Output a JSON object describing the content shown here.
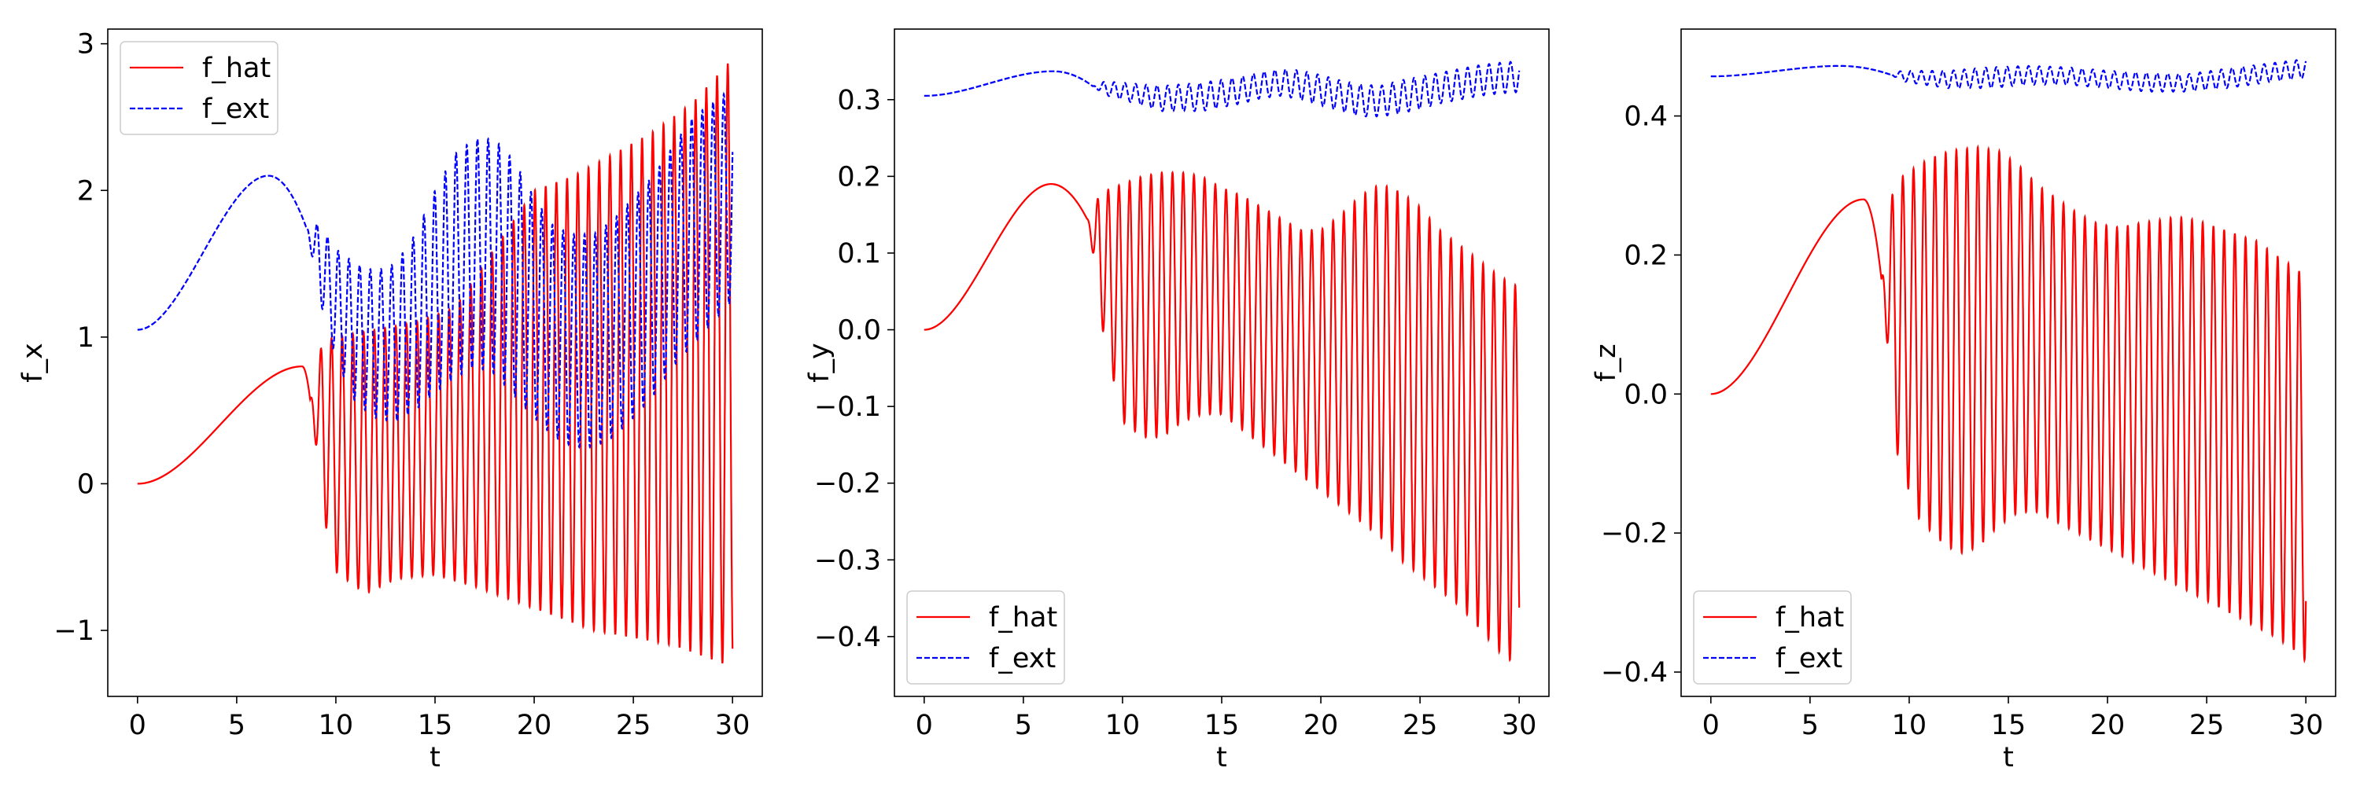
{
  "chart_data": [
    {
      "type": "line",
      "xlabel": "t",
      "ylabel": "f_x",
      "xlim": [
        -1.5,
        31.5
      ],
      "ylim": [
        -1.45,
        3.1
      ],
      "xticks": [
        0,
        5,
        10,
        15,
        20,
        25,
        30
      ],
      "xtick_labels": [
        "0",
        "5",
        "10",
        "15",
        "20",
        "25",
        "30"
      ],
      "yticks": [
        -1,
        0,
        1,
        2,
        3
      ],
      "ytick_labels": [
        "−1",
        "0",
        "1",
        "2",
        "3"
      ],
      "legend": {
        "position": "upper left",
        "entries": [
          "f_hat",
          "f_ext"
        ]
      },
      "series": [
        {
          "name": "f_hat",
          "color": "#ff0000",
          "style": "solid",
          "onset_t": 8.7,
          "smooth": {
            "v0": 0.0,
            "peak_v": 0.8,
            "peak_t": 8.3
          },
          "osc_period": 0.54,
          "upper_env": {
            "t": [
              8.7,
              10,
              12,
              14,
              16,
              18,
              20,
              22,
              24,
              26,
              28,
              30
            ],
            "v": [
              0.95,
              1.0,
              1.05,
              1.1,
              1.2,
              1.6,
              2.0,
              2.1,
              2.25,
              2.4,
              2.6,
              2.9
            ]
          },
          "lower_env": {
            "t": [
              8.7,
              10,
              11.5,
              13,
              15,
              17,
              19,
              21,
              23,
              25,
              27,
              30
            ],
            "v": [
              0.2,
              -0.6,
              -0.75,
              -0.65,
              -0.62,
              -0.7,
              -0.8,
              -0.9,
              -1.0,
              -1.05,
              -1.1,
              -1.25
            ]
          }
        },
        {
          "name": "f_ext",
          "color": "#0000ff",
          "style": "dashed",
          "onset_t": 8.5,
          "smooth": {
            "v0": 1.05,
            "peak_v": 2.1,
            "peak_t": 6.6
          },
          "osc_period": 0.54,
          "upper_env": {
            "t": [
              8.5,
              10,
              11,
              12,
              13,
              14,
              15,
              16,
              17,
              18,
              19,
              20,
              21,
              22,
              23,
              24,
              25,
              26,
              27,
              28,
              29,
              30
            ],
            "v": [
              1.9,
              1.6,
              1.5,
              1.45,
              1.5,
              1.7,
              2.0,
              2.25,
              2.35,
              2.35,
              2.2,
              1.95,
              1.75,
              1.7,
              1.7,
              1.8,
              1.95,
              2.1,
              2.3,
              2.5,
              2.6,
              2.7
            ]
          },
          "lower_env": {
            "t": [
              8.5,
              10,
              11,
              12,
              13,
              14,
              15,
              16,
              17,
              18,
              19,
              20,
              21,
              22,
              23,
              24,
              25,
              26,
              27,
              28,
              29,
              30
            ],
            "v": [
              1.6,
              0.85,
              0.55,
              0.45,
              0.42,
              0.5,
              0.62,
              0.72,
              0.8,
              0.75,
              0.6,
              0.45,
              0.32,
              0.25,
              0.25,
              0.32,
              0.45,
              0.6,
              0.8,
              0.95,
              1.1,
              1.25
            ]
          }
        }
      ]
    },
    {
      "type": "line",
      "xlabel": "t",
      "ylabel": "f_y",
      "xlim": [
        -1.5,
        31.5
      ],
      "ylim": [
        -0.478,
        0.392
      ],
      "xticks": [
        0,
        5,
        10,
        15,
        20,
        25,
        30
      ],
      "xtick_labels": [
        "0",
        "5",
        "10",
        "15",
        "20",
        "25",
        "30"
      ],
      "yticks": [
        -0.4,
        -0.3,
        -0.2,
        -0.1,
        0.0,
        0.1,
        0.2,
        0.3
      ],
      "ytick_labels": [
        "−0.4",
        "−0.3",
        "−0.2",
        "−0.1",
        "0.0",
        "0.1",
        "0.2",
        "0.3"
      ],
      "legend": {
        "position": "lower left",
        "entries": [
          "f_hat",
          "f_ext"
        ]
      },
      "series": [
        {
          "name": "f_hat",
          "color": "#ff0000",
          "style": "solid",
          "onset_t": 8.2,
          "smooth": {
            "v0": 0.0,
            "peak_v": 0.19,
            "peak_t": 6.4
          },
          "osc_period": 0.54,
          "upper_env": {
            "t": [
              8.2,
              9,
              10,
              11,
              12,
              13,
              14,
              15,
              16,
              17,
              18,
              19,
              20,
              21,
              22,
              23,
              24,
              25,
              26,
              27,
              28,
              29,
              30
            ],
            "v": [
              0.17,
              0.18,
              0.19,
              0.2,
              0.205,
              0.205,
              0.2,
              0.185,
              0.175,
              0.16,
              0.145,
              0.13,
              0.13,
              0.15,
              0.175,
              0.19,
              0.18,
              0.16,
              0.13,
              0.11,
              0.09,
              0.07,
              0.055
            ]
          },
          "lower_env": {
            "t": [
              8.2,
              9,
              10,
              11,
              12,
              13,
              14,
              15,
              16,
              17,
              18,
              19,
              20,
              21,
              22,
              23,
              24,
              25,
              26,
              27,
              28,
              29,
              30
            ],
            "v": [
              0.12,
              0.0,
              -0.12,
              -0.14,
              -0.14,
              -0.12,
              -0.11,
              -0.11,
              -0.13,
              -0.15,
              -0.17,
              -0.19,
              -0.21,
              -0.23,
              -0.25,
              -0.27,
              -0.3,
              -0.32,
              -0.34,
              -0.36,
              -0.39,
              -0.42,
              -0.44
            ]
          }
        },
        {
          "name": "f_ext",
          "color": "#0000ff",
          "style": "dashed",
          "onset_t": 8.5,
          "smooth": {
            "v0": 0.305,
            "peak_v": 0.337,
            "peak_t": 6.5
          },
          "osc_period": 0.54,
          "upper_env": {
            "t": [
              8.5,
              10,
              12,
              14,
              16,
              17,
              18,
              19,
              20,
              21,
              22,
              23,
              24,
              25,
              26,
              27,
              28,
              29,
              30
            ],
            "v": [
              0.325,
              0.322,
              0.318,
              0.322,
              0.33,
              0.336,
              0.34,
              0.338,
              0.332,
              0.325,
              0.32,
              0.318,
              0.325,
              0.33,
              0.335,
              0.34,
              0.345,
              0.348,
              0.35
            ]
          },
          "lower_env": {
            "t": [
              8.5,
              10,
              12,
              14,
              16,
              17,
              18,
              19,
              20,
              21,
              22,
              23,
              24,
              25,
              26,
              27,
              28,
              29,
              30
            ],
            "v": [
              0.31,
              0.3,
              0.285,
              0.285,
              0.295,
              0.302,
              0.305,
              0.3,
              0.292,
              0.285,
              0.278,
              0.278,
              0.282,
              0.288,
              0.295,
              0.3,
              0.305,
              0.308,
              0.31
            ]
          }
        }
      ]
    },
    {
      "type": "line",
      "xlabel": "t",
      "ylabel": "f_z",
      "xlim": [
        -1.5,
        31.5
      ],
      "ylim": [
        -0.435,
        0.525
      ],
      "xticks": [
        0,
        5,
        10,
        15,
        20,
        25,
        30
      ],
      "xtick_labels": [
        "0",
        "5",
        "10",
        "15",
        "20",
        "25",
        "30"
      ],
      "yticks": [
        -0.4,
        -0.2,
        0.0,
        0.2,
        0.4
      ],
      "ytick_labels": [
        "−0.4",
        "−0.2",
        "0.0",
        "0.2",
        "0.4"
      ],
      "legend": {
        "position": "lower left",
        "entries": [
          "f_hat",
          "f_ext"
        ]
      },
      "series": [
        {
          "name": "f_hat",
          "color": "#ff0000",
          "style": "solid",
          "onset_t": 8.6,
          "smooth": {
            "v0": 0.0,
            "peak_v": 0.28,
            "peak_t": 7.7
          },
          "osc_period": 0.54,
          "upper_env": {
            "t": [
              8.6,
              9.5,
              10.5,
              11.5,
              12.5,
              13.5,
              14.5,
              15.5,
              16.5,
              17.5,
              18.5,
              19.5,
              20.5,
              21.5,
              22.5,
              23.5,
              24.5,
              25.5,
              26.5,
              27.5,
              28.5,
              29.5,
              30
            ],
            "v": [
              0.29,
              0.31,
              0.33,
              0.345,
              0.352,
              0.355,
              0.35,
              0.33,
              0.3,
              0.28,
              0.26,
              0.245,
              0.24,
              0.245,
              0.25,
              0.255,
              0.25,
              0.24,
              0.23,
              0.22,
              0.2,
              0.18,
              0.17
            ]
          },
          "lower_env": {
            "t": [
              8.6,
              9.5,
              10.5,
              11.5,
              12.5,
              13.5,
              14.5,
              15.5,
              16.5,
              17.5,
              18.5,
              19.5,
              20.5,
              21.5,
              22.5,
              23.5,
              24.5,
              25.5,
              26.5,
              27.5,
              28.5,
              29.5,
              30
            ],
            "v": [
              0.04,
              -0.1,
              -0.18,
              -0.21,
              -0.23,
              -0.22,
              -0.19,
              -0.17,
              -0.17,
              -0.185,
              -0.2,
              -0.215,
              -0.23,
              -0.245,
              -0.26,
              -0.275,
              -0.29,
              -0.305,
              -0.32,
              -0.335,
              -0.35,
              -0.37,
              -0.385
            ]
          }
        },
        {
          "name": "f_ext",
          "color": "#0000ff",
          "style": "dashed",
          "onset_t": 9.0,
          "smooth": {
            "v0": 0.457,
            "peak_v": 0.472,
            "peak_t": 6.5
          },
          "osc_period": 0.54,
          "upper_env": {
            "t": [
              9,
              10,
              12,
              14,
              16,
              18,
              20,
              22,
              24,
              26,
              28,
              30
            ],
            "v": [
              0.465,
              0.465,
              0.465,
              0.47,
              0.472,
              0.47,
              0.465,
              0.462,
              0.46,
              0.468,
              0.475,
              0.482
            ]
          },
          "lower_env": {
            "t": [
              9,
              10,
              12,
              14,
              16,
              18,
              20,
              22,
              24,
              26,
              28,
              30
            ],
            "v": [
              0.455,
              0.448,
              0.44,
              0.44,
              0.445,
              0.445,
              0.44,
              0.435,
              0.435,
              0.44,
              0.448,
              0.455
            ]
          }
        }
      ]
    }
  ]
}
